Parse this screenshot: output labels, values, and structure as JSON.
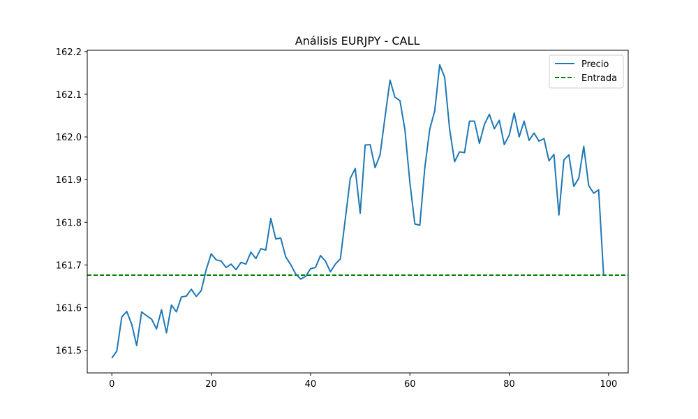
{
  "chart_data": {
    "type": "line",
    "title": "Análisis EURJPY - CALL",
    "xlabel": "",
    "ylabel": "",
    "xlim": [
      -4.95,
      103.95
    ],
    "ylim": [
      161.447,
      162.203
    ],
    "xticks": [
      0,
      20,
      40,
      60,
      80,
      100
    ],
    "yticks": [
      161.5,
      161.6,
      161.7,
      161.8,
      161.9,
      162.0,
      162.1,
      162.2
    ],
    "ytick_labels": [
      "161.5",
      "161.6",
      "161.7",
      "161.8",
      "161.9",
      "162.0",
      "162.1",
      "162.2"
    ],
    "grid": false,
    "legend_position": "top-right",
    "series": [
      {
        "name": "Precio",
        "color": "#1f77b4",
        "style": "solid",
        "x": [
          0,
          1,
          2,
          3,
          4,
          5,
          6,
          7,
          8,
          9,
          10,
          11,
          12,
          13,
          14,
          15,
          16,
          17,
          18,
          19,
          20,
          21,
          22,
          23,
          24,
          25,
          26,
          27,
          28,
          29,
          30,
          31,
          32,
          33,
          34,
          35,
          36,
          37,
          38,
          39,
          40,
          41,
          42,
          43,
          44,
          45,
          46,
          47,
          48,
          49,
          50,
          51,
          52,
          53,
          54,
          55,
          56,
          57,
          58,
          59,
          60,
          61,
          62,
          63,
          64,
          65,
          66,
          67,
          68,
          69,
          70,
          71,
          72,
          73,
          74,
          75,
          76,
          77,
          78,
          79,
          80,
          81,
          82,
          83,
          84,
          85,
          86,
          87,
          88,
          89,
          90,
          91,
          92,
          93,
          94,
          95,
          96,
          97,
          98,
          99
        ],
        "values": [
          161.482,
          161.498,
          161.578,
          161.591,
          161.561,
          161.511,
          161.59,
          161.581,
          161.573,
          161.55,
          161.595,
          161.541,
          161.606,
          161.59,
          161.625,
          161.627,
          161.643,
          161.626,
          161.64,
          161.689,
          161.726,
          161.712,
          161.709,
          161.694,
          161.702,
          161.689,
          161.706,
          161.702,
          161.73,
          161.715,
          161.738,
          161.735,
          161.809,
          161.761,
          161.763,
          161.719,
          161.701,
          161.679,
          161.667,
          161.673,
          161.691,
          161.694,
          161.722,
          161.709,
          161.684,
          161.702,
          161.714,
          161.808,
          161.903,
          161.926,
          161.821,
          161.981,
          161.982,
          161.928,
          161.958,
          162.047,
          162.133,
          162.093,
          162.085,
          162.017,
          161.893,
          161.796,
          161.793,
          161.927,
          162.018,
          162.061,
          162.169,
          162.14,
          162.018,
          161.942,
          161.965,
          161.963,
          162.037,
          162.037,
          161.985,
          162.029,
          162.053,
          162.019,
          162.039,
          161.982,
          162.004,
          162.056,
          162.0,
          162.037,
          161.992,
          162.009,
          161.99,
          161.996,
          161.944,
          161.959,
          161.817,
          161.946,
          161.958,
          161.884,
          161.903,
          161.978,
          161.886,
          161.868,
          161.876,
          161.676
        ]
      },
      {
        "name": "Entrada",
        "color": "#008000",
        "style": "dashed",
        "type": "hline",
        "value": 161.676
      }
    ]
  }
}
